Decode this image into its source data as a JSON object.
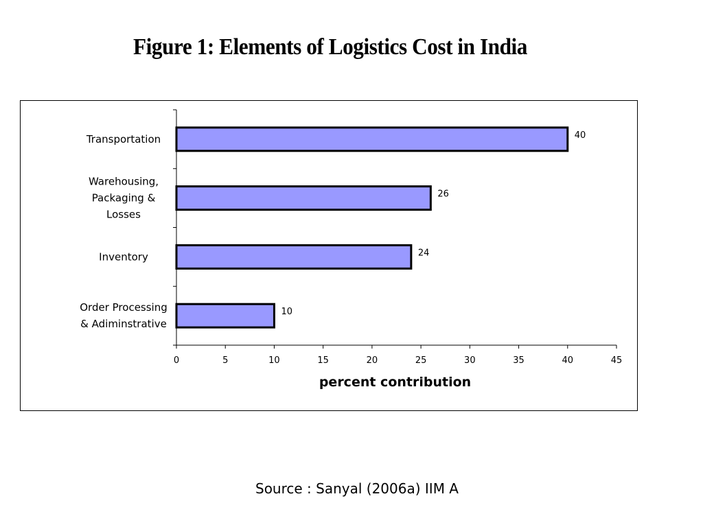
{
  "figure_title": "Figure 1: Elements of  Logistics Cost in India",
  "source": "Source : Sanyal (2006a) IIM A",
  "chart_data": {
    "type": "bar",
    "orientation": "horizontal",
    "categories": [
      [
        "Transportation"
      ],
      [
        "Warehousing,",
        "Packaging &",
        "Losses"
      ],
      [
        "Inventory"
      ],
      [
        "Order Processing",
        "& Adiminstrative"
      ]
    ],
    "values": [
      40,
      26,
      24,
      10
    ],
    "data_labels": [
      "40",
      "26",
      "24",
      "10"
    ],
    "xlabel": "percent contribution",
    "ylabel": "",
    "xlim": [
      0,
      45
    ],
    "xticks": [
      0,
      5,
      10,
      15,
      20,
      25,
      30,
      35,
      40,
      45
    ],
    "tick_labels": [
      "0",
      "5",
      "10",
      "15",
      "20",
      "25",
      "30",
      "35",
      "40",
      "45"
    ],
    "grid": false,
    "legend": "none",
    "bar_color": "#9999ff",
    "bar_edge_color": "#000000"
  }
}
